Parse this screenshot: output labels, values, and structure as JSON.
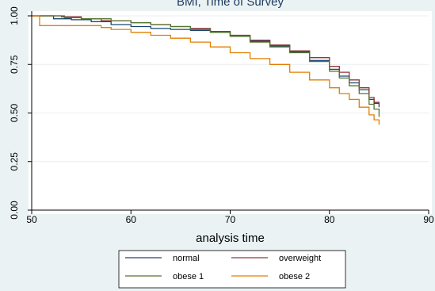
{
  "chart_data": {
    "type": "line",
    "title": "BMI, Time of Survey",
    "xlabel": "analysis time",
    "ylabel": "",
    "xlim": [
      50,
      90
    ],
    "ylim": [
      0,
      1
    ],
    "x_ticks": [
      "50",
      "60",
      "70",
      "80",
      "90"
    ],
    "y_ticks": [
      "0.00",
      "0.25",
      "0.50",
      "0.75",
      "1.00"
    ],
    "grid": "horizontal",
    "legend_position": "bottom",
    "series": [
      {
        "name": "normal",
        "color": "#1a476f",
        "points": [
          [
            50,
            1.0
          ],
          [
            52,
            1.0
          ],
          [
            52.2,
            0.985
          ],
          [
            54,
            0.98
          ],
          [
            56,
            0.97
          ],
          [
            58,
            0.955
          ],
          [
            60,
            0.945
          ],
          [
            62,
            0.935
          ],
          [
            64,
            0.93
          ],
          [
            66,
            0.925
          ],
          [
            68,
            0.915
          ],
          [
            70,
            0.895
          ],
          [
            72,
            0.87
          ],
          [
            74,
            0.845
          ],
          [
            76,
            0.815
          ],
          [
            78,
            0.77
          ],
          [
            80,
            0.725
          ],
          [
            81,
            0.69
          ],
          [
            82,
            0.655
          ],
          [
            83,
            0.62
          ],
          [
            84,
            0.57
          ],
          [
            84.5,
            0.55
          ],
          [
            85,
            0.53
          ]
        ]
      },
      {
        "name": "overweight",
        "color": "#90353b",
        "points": [
          [
            50,
            1.0
          ],
          [
            52,
            1.0
          ],
          [
            53,
            0.995
          ],
          [
            55,
            0.985
          ],
          [
            57,
            0.975
          ],
          [
            60,
            0.965
          ],
          [
            62,
            0.955
          ],
          [
            64,
            0.945
          ],
          [
            66,
            0.935
          ],
          [
            68,
            0.92
          ],
          [
            70,
            0.9
          ],
          [
            72,
            0.875
          ],
          [
            74,
            0.85
          ],
          [
            76,
            0.82
          ],
          [
            78,
            0.785
          ],
          [
            80,
            0.74
          ],
          [
            81,
            0.71
          ],
          [
            82,
            0.67
          ],
          [
            83,
            0.63
          ],
          [
            84,
            0.58
          ],
          [
            84.5,
            0.555
          ],
          [
            85,
            0.54
          ]
        ]
      },
      {
        "name": "obese 1",
        "color": "#55752f",
        "points": [
          [
            50,
            1.0
          ],
          [
            53,
            1.0
          ],
          [
            53.3,
            0.99
          ],
          [
            55,
            0.985
          ],
          [
            58,
            0.975
          ],
          [
            60,
            0.965
          ],
          [
            62,
            0.955
          ],
          [
            64,
            0.945
          ],
          [
            66,
            0.93
          ],
          [
            68,
            0.915
          ],
          [
            70,
            0.895
          ],
          [
            72,
            0.865
          ],
          [
            74,
            0.84
          ],
          [
            76,
            0.81
          ],
          [
            78,
            0.765
          ],
          [
            80,
            0.715
          ],
          [
            81,
            0.68
          ],
          [
            82,
            0.64
          ],
          [
            83,
            0.6
          ],
          [
            84,
            0.545
          ],
          [
            84.5,
            0.52
          ],
          [
            85,
            0.48
          ]
        ]
      },
      {
        "name": "obese 2",
        "color": "#e37e00",
        "points": [
          [
            50,
            1.0
          ],
          [
            50.7,
            1.0
          ],
          [
            50.8,
            0.95
          ],
          [
            55,
            0.95
          ],
          [
            56,
            0.95
          ],
          [
            57,
            0.94
          ],
          [
            58,
            0.93
          ],
          [
            60,
            0.915
          ],
          [
            62,
            0.9
          ],
          [
            64,
            0.885
          ],
          [
            66,
            0.865
          ],
          [
            68,
            0.84
          ],
          [
            70,
            0.81
          ],
          [
            72,
            0.78
          ],
          [
            74,
            0.75
          ],
          [
            76,
            0.71
          ],
          [
            78,
            0.67
          ],
          [
            80,
            0.63
          ],
          [
            81,
            0.6
          ],
          [
            82,
            0.57
          ],
          [
            83,
            0.53
          ],
          [
            84,
            0.49
          ],
          [
            84.5,
            0.465
          ],
          [
            85,
            0.44
          ]
        ]
      }
    ]
  }
}
